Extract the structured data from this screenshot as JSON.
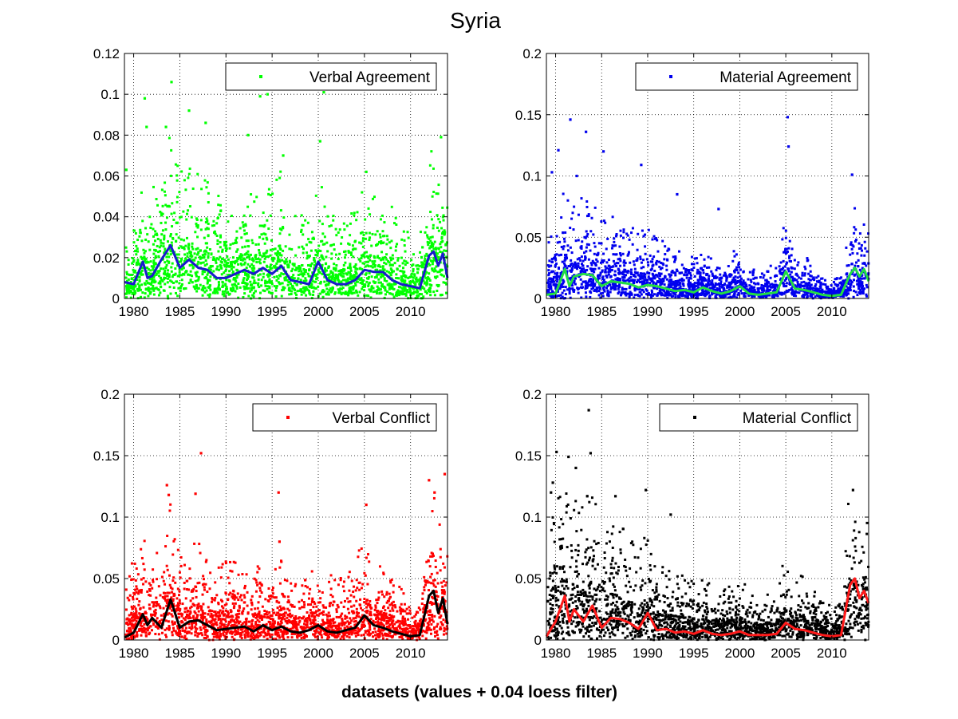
{
  "figure": {
    "title": "Syria",
    "xlabel": "datasets (values + 0.04 loess filter)"
  },
  "chart_data": [
    {
      "type": "scatter",
      "name": "verbal-agreement",
      "series_label": "Verbal Agreement",
      "point_color": "#00ff00",
      "line_color": "#1a1acc",
      "xlim": [
        1979,
        2014
      ],
      "ylim": [
        0,
        0.12
      ],
      "xticks": [
        1980,
        1985,
        1990,
        1995,
        2000,
        2005,
        2010
      ],
      "yticks": [
        0,
        0.02,
        0.04,
        0.06,
        0.08,
        0.1,
        0.12
      ],
      "ytick_labels": [
        "0",
        "0.02",
        "0.04",
        "0.06",
        "0.08",
        "0.1",
        "0.12"
      ],
      "grid": true,
      "legend_position": "top-right",
      "outliers": [
        [
          1979.2,
          0.063
        ],
        [
          1981.2,
          0.098
        ],
        [
          1981.4,
          0.084
        ],
        [
          1983.5,
          0.084
        ],
        [
          1984.1,
          0.106
        ],
        [
          1986,
          0.092
        ],
        [
          1987.8,
          0.086
        ],
        [
          1992.4,
          0.08
        ],
        [
          1993.7,
          0.099
        ],
        [
          1994.5,
          0.1
        ],
        [
          2000.6,
          0.101
        ],
        [
          2000.2,
          0.077
        ],
        [
          1996.2,
          0.07
        ],
        [
          2005.2,
          0.062
        ],
        [
          2013.3,
          0.079
        ]
      ],
      "x": [
        1979,
        1980,
        1981,
        1981.5,
        1982,
        1983,
        1984,
        1985,
        1986,
        1987,
        1988,
        1989,
        1990,
        1991,
        1992,
        1993,
        1994,
        1995,
        1996,
        1997,
        1998,
        1999,
        2000,
        2001,
        2002,
        2003,
        2004,
        2005,
        2006,
        2007,
        2008,
        2009,
        2010,
        2011,
        2012,
        2012.5,
        2013,
        2013.5,
        2014
      ],
      "loess": [
        0.008,
        0.007,
        0.018,
        0.01,
        0.011,
        0.019,
        0.026,
        0.015,
        0.019,
        0.015,
        0.014,
        0.01,
        0.01,
        0.012,
        0.014,
        0.012,
        0.015,
        0.012,
        0.016,
        0.009,
        0.008,
        0.007,
        0.018,
        0.009,
        0.007,
        0.007,
        0.009,
        0.014,
        0.013,
        0.013,
        0.009,
        0.007,
        0.006,
        0.005,
        0.021,
        0.023,
        0.016,
        0.022,
        0.01
      ],
      "envelope": [
        0.018,
        0.022,
        0.04,
        0.03,
        0.033,
        0.045,
        0.05,
        0.04,
        0.045,
        0.04,
        0.038,
        0.032,
        0.03,
        0.034,
        0.036,
        0.034,
        0.038,
        0.034,
        0.04,
        0.028,
        0.026,
        0.024,
        0.04,
        0.028,
        0.024,
        0.024,
        0.028,
        0.036,
        0.034,
        0.032,
        0.028,
        0.022,
        0.02,
        0.018,
        0.045,
        0.048,
        0.04,
        0.046,
        0.03
      ]
    },
    {
      "type": "scatter",
      "name": "material-agreement",
      "series_label": "Material Agreement",
      "point_color": "#0000ee",
      "line_color": "#22dd44",
      "xlim": [
        1979,
        2014
      ],
      "ylim": [
        0,
        0.2
      ],
      "xticks": [
        1980,
        1985,
        1990,
        1995,
        2000,
        2005,
        2010
      ],
      "yticks": [
        0,
        0.05,
        0.1,
        0.15,
        0.2
      ],
      "ytick_labels": [
        "0",
        "0.05",
        "0.1",
        "0.15",
        "0.2"
      ],
      "grid": true,
      "legend_position": "top-right",
      "outliers": [
        [
          1979.6,
          0.103
        ],
        [
          1980.3,
          0.121
        ],
        [
          1981.6,
          0.146
        ],
        [
          1983.3,
          0.136
        ],
        [
          1985.2,
          0.12
        ],
        [
          1989.3,
          0.109
        ],
        [
          1993.2,
          0.085
        ],
        [
          1997.7,
          0.073
        ],
        [
          2005.2,
          0.148
        ],
        [
          2005.3,
          0.124
        ],
        [
          2012.2,
          0.101
        ],
        [
          1982.3,
          0.1
        ]
      ],
      "x": [
        1979,
        1980,
        1981,
        1981.5,
        1982,
        1983,
        1984,
        1985,
        1986,
        1987,
        1988,
        1989,
        1990,
        1991,
        1992,
        1993,
        1994,
        1995,
        1996,
        1997,
        1998,
        1999,
        2000,
        2001,
        2002,
        2003,
        2004,
        2005,
        2006,
        2007,
        2008,
        2009,
        2010,
        2011,
        2012,
        2012.5,
        2013,
        2013.5,
        2014
      ],
      "loess": [
        0.003,
        0.004,
        0.024,
        0.01,
        0.018,
        0.02,
        0.019,
        0.01,
        0.014,
        0.013,
        0.012,
        0.009,
        0.011,
        0.01,
        0.008,
        0.006,
        0.007,
        0.005,
        0.009,
        0.006,
        0.004,
        0.006,
        0.01,
        0.004,
        0.003,
        0.004,
        0.005,
        0.022,
        0.008,
        0.007,
        0.005,
        0.003,
        0.002,
        0.003,
        0.02,
        0.025,
        0.018,
        0.024,
        0.014
      ],
      "envelope": [
        0.03,
        0.035,
        0.06,
        0.045,
        0.05,
        0.055,
        0.05,
        0.04,
        0.045,
        0.04,
        0.038,
        0.034,
        0.036,
        0.032,
        0.028,
        0.024,
        0.026,
        0.022,
        0.028,
        0.022,
        0.018,
        0.022,
        0.03,
        0.016,
        0.014,
        0.016,
        0.02,
        0.05,
        0.024,
        0.022,
        0.018,
        0.012,
        0.01,
        0.012,
        0.045,
        0.05,
        0.04,
        0.05,
        0.035
      ]
    },
    {
      "type": "scatter",
      "name": "verbal-conflict",
      "series_label": "Verbal Conflict",
      "point_color": "#ff0000",
      "line_color": "#000000",
      "xlim": [
        1979,
        2014
      ],
      "ylim": [
        0,
        0.2
      ],
      "xticks": [
        1980,
        1985,
        1990,
        1995,
        2000,
        2005,
        2010
      ],
      "yticks": [
        0,
        0.05,
        0.1,
        0.15,
        0.2
      ],
      "ytick_labels": [
        "0",
        "0.05",
        "0.1",
        "0.15",
        "0.2"
      ],
      "grid": true,
      "legend_position": "top-right",
      "outliers": [
        [
          1983.6,
          0.126
        ],
        [
          1983.8,
          0.118
        ],
        [
          1986.7,
          0.119
        ],
        [
          1987.3,
          0.152
        ],
        [
          1995.7,
          0.12
        ],
        [
          1995.8,
          0.08
        ],
        [
          2005.2,
          0.11
        ],
        [
          2012,
          0.13
        ],
        [
          2013.7,
          0.135
        ],
        [
          2012.6,
          0.12
        ]
      ],
      "x": [
        1979,
        1980,
        1981,
        1981.5,
        1982,
        1983,
        1984,
        1985,
        1986,
        1987,
        1988,
        1989,
        1990,
        1991,
        1992,
        1993,
        1994,
        1995,
        1996,
        1997,
        1998,
        1999,
        2000,
        2001,
        2002,
        2003,
        2004,
        2005,
        2006,
        2007,
        2008,
        2009,
        2010,
        2011,
        2012,
        2012.5,
        2013,
        2013.5,
        2014
      ],
      "loess": [
        0.002,
        0.006,
        0.021,
        0.012,
        0.018,
        0.01,
        0.033,
        0.01,
        0.015,
        0.016,
        0.012,
        0.008,
        0.009,
        0.01,
        0.011,
        0.007,
        0.012,
        0.008,
        0.011,
        0.007,
        0.006,
        0.008,
        0.012,
        0.007,
        0.006,
        0.008,
        0.01,
        0.02,
        0.012,
        0.01,
        0.007,
        0.005,
        0.003,
        0.004,
        0.036,
        0.04,
        0.022,
        0.034,
        0.013
      ],
      "envelope": [
        0.035,
        0.04,
        0.055,
        0.045,
        0.05,
        0.05,
        0.07,
        0.045,
        0.05,
        0.05,
        0.045,
        0.038,
        0.04,
        0.04,
        0.042,
        0.036,
        0.042,
        0.036,
        0.042,
        0.034,
        0.032,
        0.036,
        0.042,
        0.034,
        0.032,
        0.036,
        0.042,
        0.055,
        0.042,
        0.038,
        0.032,
        0.026,
        0.022,
        0.024,
        0.07,
        0.075,
        0.055,
        0.07,
        0.045
      ]
    },
    {
      "type": "scatter",
      "name": "material-conflict",
      "series_label": "Material Conflict",
      "point_color": "#000000",
      "line_color": "#ff1a1a",
      "xlim": [
        1979,
        2014
      ],
      "ylim": [
        0,
        0.2
      ],
      "xticks": [
        1980,
        1985,
        1990,
        1995,
        2000,
        2005,
        2010
      ],
      "yticks": [
        0,
        0.05,
        0.1,
        0.15,
        0.2
      ],
      "ytick_labels": [
        "0",
        "0.05",
        "0.1",
        "0.15",
        "0.2"
      ],
      "grid": true,
      "legend_position": "top-right",
      "outliers": [
        [
          1979.5,
          0.12
        ],
        [
          1979.7,
          0.128
        ],
        [
          1980.1,
          0.153
        ],
        [
          1981.4,
          0.149
        ],
        [
          1983.8,
          0.152
        ],
        [
          1983.6,
          0.187
        ],
        [
          1986.5,
          0.117
        ],
        [
          1989.8,
          0.122
        ],
        [
          1992.5,
          0.102
        ],
        [
          2012.3,
          0.122
        ],
        [
          1982.2,
          0.14
        ]
      ],
      "x": [
        1979,
        1980,
        1981,
        1981.5,
        1982,
        1983,
        1984,
        1985,
        1986,
        1987,
        1988,
        1989,
        1990,
        1991,
        1992,
        1993,
        1994,
        1995,
        1996,
        1997,
        1998,
        1999,
        2000,
        2001,
        2002,
        2003,
        2004,
        2005,
        2006,
        2007,
        2008,
        2009,
        2010,
        2011,
        2012,
        2012.5,
        2013,
        2013.5,
        2014
      ],
      "loess": [
        0.003,
        0.015,
        0.036,
        0.015,
        0.025,
        0.015,
        0.028,
        0.01,
        0.018,
        0.017,
        0.014,
        0.009,
        0.022,
        0.008,
        0.009,
        0.006,
        0.007,
        0.005,
        0.008,
        0.005,
        0.004,
        0.005,
        0.007,
        0.004,
        0.004,
        0.004,
        0.005,
        0.014,
        0.009,
        0.008,
        0.006,
        0.004,
        0.003,
        0.004,
        0.045,
        0.05,
        0.034,
        0.04,
        0.03
      ],
      "envelope": [
        0.05,
        0.07,
        0.09,
        0.065,
        0.075,
        0.07,
        0.08,
        0.055,
        0.065,
        0.06,
        0.055,
        0.045,
        0.06,
        0.04,
        0.038,
        0.034,
        0.034,
        0.03,
        0.034,
        0.028,
        0.026,
        0.028,
        0.032,
        0.026,
        0.024,
        0.024,
        0.028,
        0.045,
        0.034,
        0.032,
        0.028,
        0.022,
        0.018,
        0.02,
        0.085,
        0.095,
        0.07,
        0.08,
        0.065
      ]
    }
  ]
}
